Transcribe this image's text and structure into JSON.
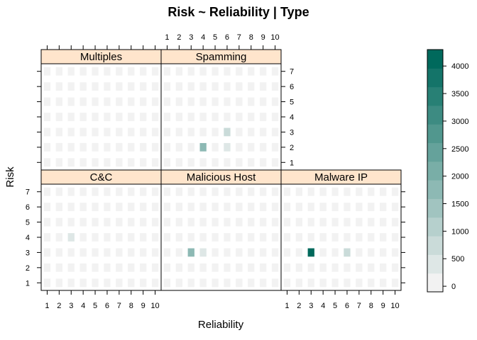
{
  "chart_data": {
    "type": "heatmap",
    "title": "Risk ~ Reliability | Type",
    "xlabel": "Reliability",
    "ylabel": "Risk",
    "x": [
      1,
      2,
      3,
      4,
      5,
      6,
      7,
      8,
      9,
      10
    ],
    "y": [
      1,
      2,
      3,
      4,
      5,
      6,
      7
    ],
    "x_tick_labels": [
      "1",
      "2",
      "3",
      "4",
      "5",
      "6",
      "7",
      "8",
      "9",
      "10"
    ],
    "y_tick_labels": [
      "1",
      "2",
      "3",
      "4",
      "5",
      "6",
      "7"
    ],
    "colorbar": {
      "range": [
        0,
        4400
      ],
      "ticks": [
        0,
        500,
        1000,
        1500,
        2000,
        2500,
        3000,
        3500,
        4000
      ],
      "tick_labels": [
        "0",
        "500",
        "1000",
        "1500",
        "2000",
        "2500",
        "3000",
        "3500",
        "4000"
      ],
      "low_color": "#f2f2f2",
      "high_color": "#00695c"
    },
    "panels": [
      {
        "name": "Multiples",
        "values": [
          [
            0,
            0,
            0,
            0,
            0,
            0,
            0,
            0,
            0,
            0
          ],
          [
            0,
            120,
            150,
            120,
            0,
            120,
            0,
            120,
            100,
            0
          ],
          [
            0,
            0,
            150,
            150,
            0,
            130,
            0,
            0,
            0,
            0
          ],
          [
            0,
            0,
            140,
            120,
            0,
            120,
            0,
            0,
            0,
            0
          ],
          [
            0,
            0,
            0,
            0,
            0,
            120,
            0,
            0,
            0,
            0
          ],
          [
            0,
            0,
            0,
            0,
            0,
            100,
            0,
            0,
            0,
            0
          ],
          [
            0,
            0,
            0,
            0,
            0,
            0,
            0,
            0,
            0,
            0
          ]
        ]
      },
      {
        "name": "Spamming",
        "values": [
          [
            0,
            0,
            0,
            0,
            0,
            0,
            0,
            0,
            0,
            0
          ],
          [
            0,
            0,
            120,
            1700,
            0,
            500,
            0,
            0,
            130,
            0
          ],
          [
            0,
            0,
            150,
            130,
            0,
            800,
            0,
            0,
            0,
            120
          ],
          [
            300,
            0,
            150,
            0,
            0,
            150,
            0,
            0,
            140,
            0
          ],
          [
            120,
            0,
            150,
            0,
            0,
            120,
            0,
            0,
            0,
            0
          ],
          [
            0,
            0,
            0,
            0,
            0,
            0,
            0,
            0,
            0,
            0
          ],
          [
            0,
            0,
            0,
            0,
            0,
            0,
            0,
            0,
            0,
            0
          ]
        ]
      },
      {
        "name": "C&C",
        "values": [
          [
            0,
            0,
            0,
            0,
            0,
            0,
            0,
            0,
            0,
            0
          ],
          [
            0,
            0,
            0,
            0,
            0,
            0,
            0,
            0,
            0,
            0
          ],
          [
            0,
            0,
            0,
            0,
            0,
            0,
            0,
            0,
            0,
            0
          ],
          [
            0,
            0,
            400,
            140,
            0,
            130,
            0,
            0,
            150,
            200
          ],
          [
            0,
            0,
            140,
            120,
            0,
            150,
            0,
            0,
            130,
            0
          ],
          [
            0,
            0,
            0,
            0,
            0,
            0,
            0,
            0,
            0,
            0
          ],
          [
            0,
            0,
            0,
            0,
            0,
            0,
            0,
            0,
            0,
            0
          ]
        ]
      },
      {
        "name": "Malicious Host",
        "values": [
          [
            0,
            0,
            0,
            0,
            0,
            0,
            0,
            0,
            0,
            0
          ],
          [
            0,
            0,
            0,
            150,
            0,
            0,
            0,
            0,
            0,
            0
          ],
          [
            0,
            130,
            2000,
            400,
            0,
            0,
            0,
            0,
            0,
            0
          ],
          [
            0,
            0,
            150,
            300,
            0,
            0,
            0,
            0,
            0,
            0
          ],
          [
            0,
            0,
            0,
            130,
            0,
            0,
            0,
            0,
            0,
            0
          ],
          [
            0,
            0,
            0,
            120,
            0,
            0,
            0,
            0,
            0,
            0
          ],
          [
            0,
            0,
            0,
            0,
            0,
            0,
            0,
            0,
            0,
            0
          ]
        ]
      },
      {
        "name": "Malware IP",
        "values": [
          [
            0,
            0,
            0,
            0,
            0,
            0,
            0,
            0,
            0,
            0
          ],
          [
            0,
            0,
            300,
            0,
            0,
            0,
            0,
            0,
            0,
            0
          ],
          [
            0,
            0,
            4400,
            150,
            0,
            700,
            130,
            150,
            150,
            120
          ],
          [
            0,
            0,
            200,
            140,
            0,
            120,
            0,
            130,
            150,
            130
          ],
          [
            0,
            0,
            0,
            130,
            0,
            130,
            0,
            0,
            120,
            0
          ],
          [
            0,
            0,
            0,
            130,
            0,
            0,
            0,
            0,
            0,
            120
          ],
          [
            0,
            0,
            0,
            0,
            0,
            0,
            0,
            0,
            0,
            0
          ]
        ]
      }
    ]
  }
}
